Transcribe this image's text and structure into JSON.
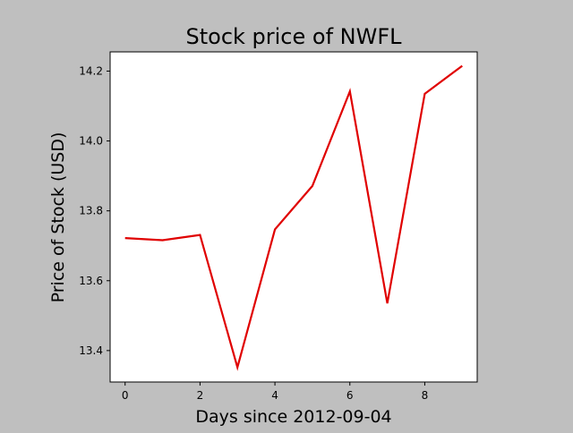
{
  "chart_data": {
    "type": "line",
    "title": "Stock price of NWFL",
    "xlabel": "Days since 2012-09-04",
    "ylabel": "Price of Stock (USD)",
    "x": [
      0,
      1,
      2,
      3,
      4,
      5,
      6,
      7,
      8,
      9
    ],
    "series": [
      {
        "values": [
          13.722,
          13.716,
          13.731,
          13.352,
          13.747,
          13.871,
          14.142,
          13.535,
          14.135,
          14.215
        ],
        "color": "#e00000"
      }
    ],
    "xlim": [
      -0.4,
      9.4
    ],
    "ylim": [
      13.31,
      14.255
    ],
    "xticks": [
      0,
      2,
      4,
      6,
      8
    ],
    "yticks": [
      13.4,
      13.6,
      13.8,
      14.0,
      14.2
    ],
    "xtick_labels": [
      "0",
      "2",
      "4",
      "6",
      "8"
    ],
    "ytick_labels": [
      "13.4",
      "13.6",
      "13.8",
      "14.0",
      "14.2"
    ],
    "grid": false,
    "background": "#bfbfbf",
    "plot_background": "#ffffff"
  }
}
